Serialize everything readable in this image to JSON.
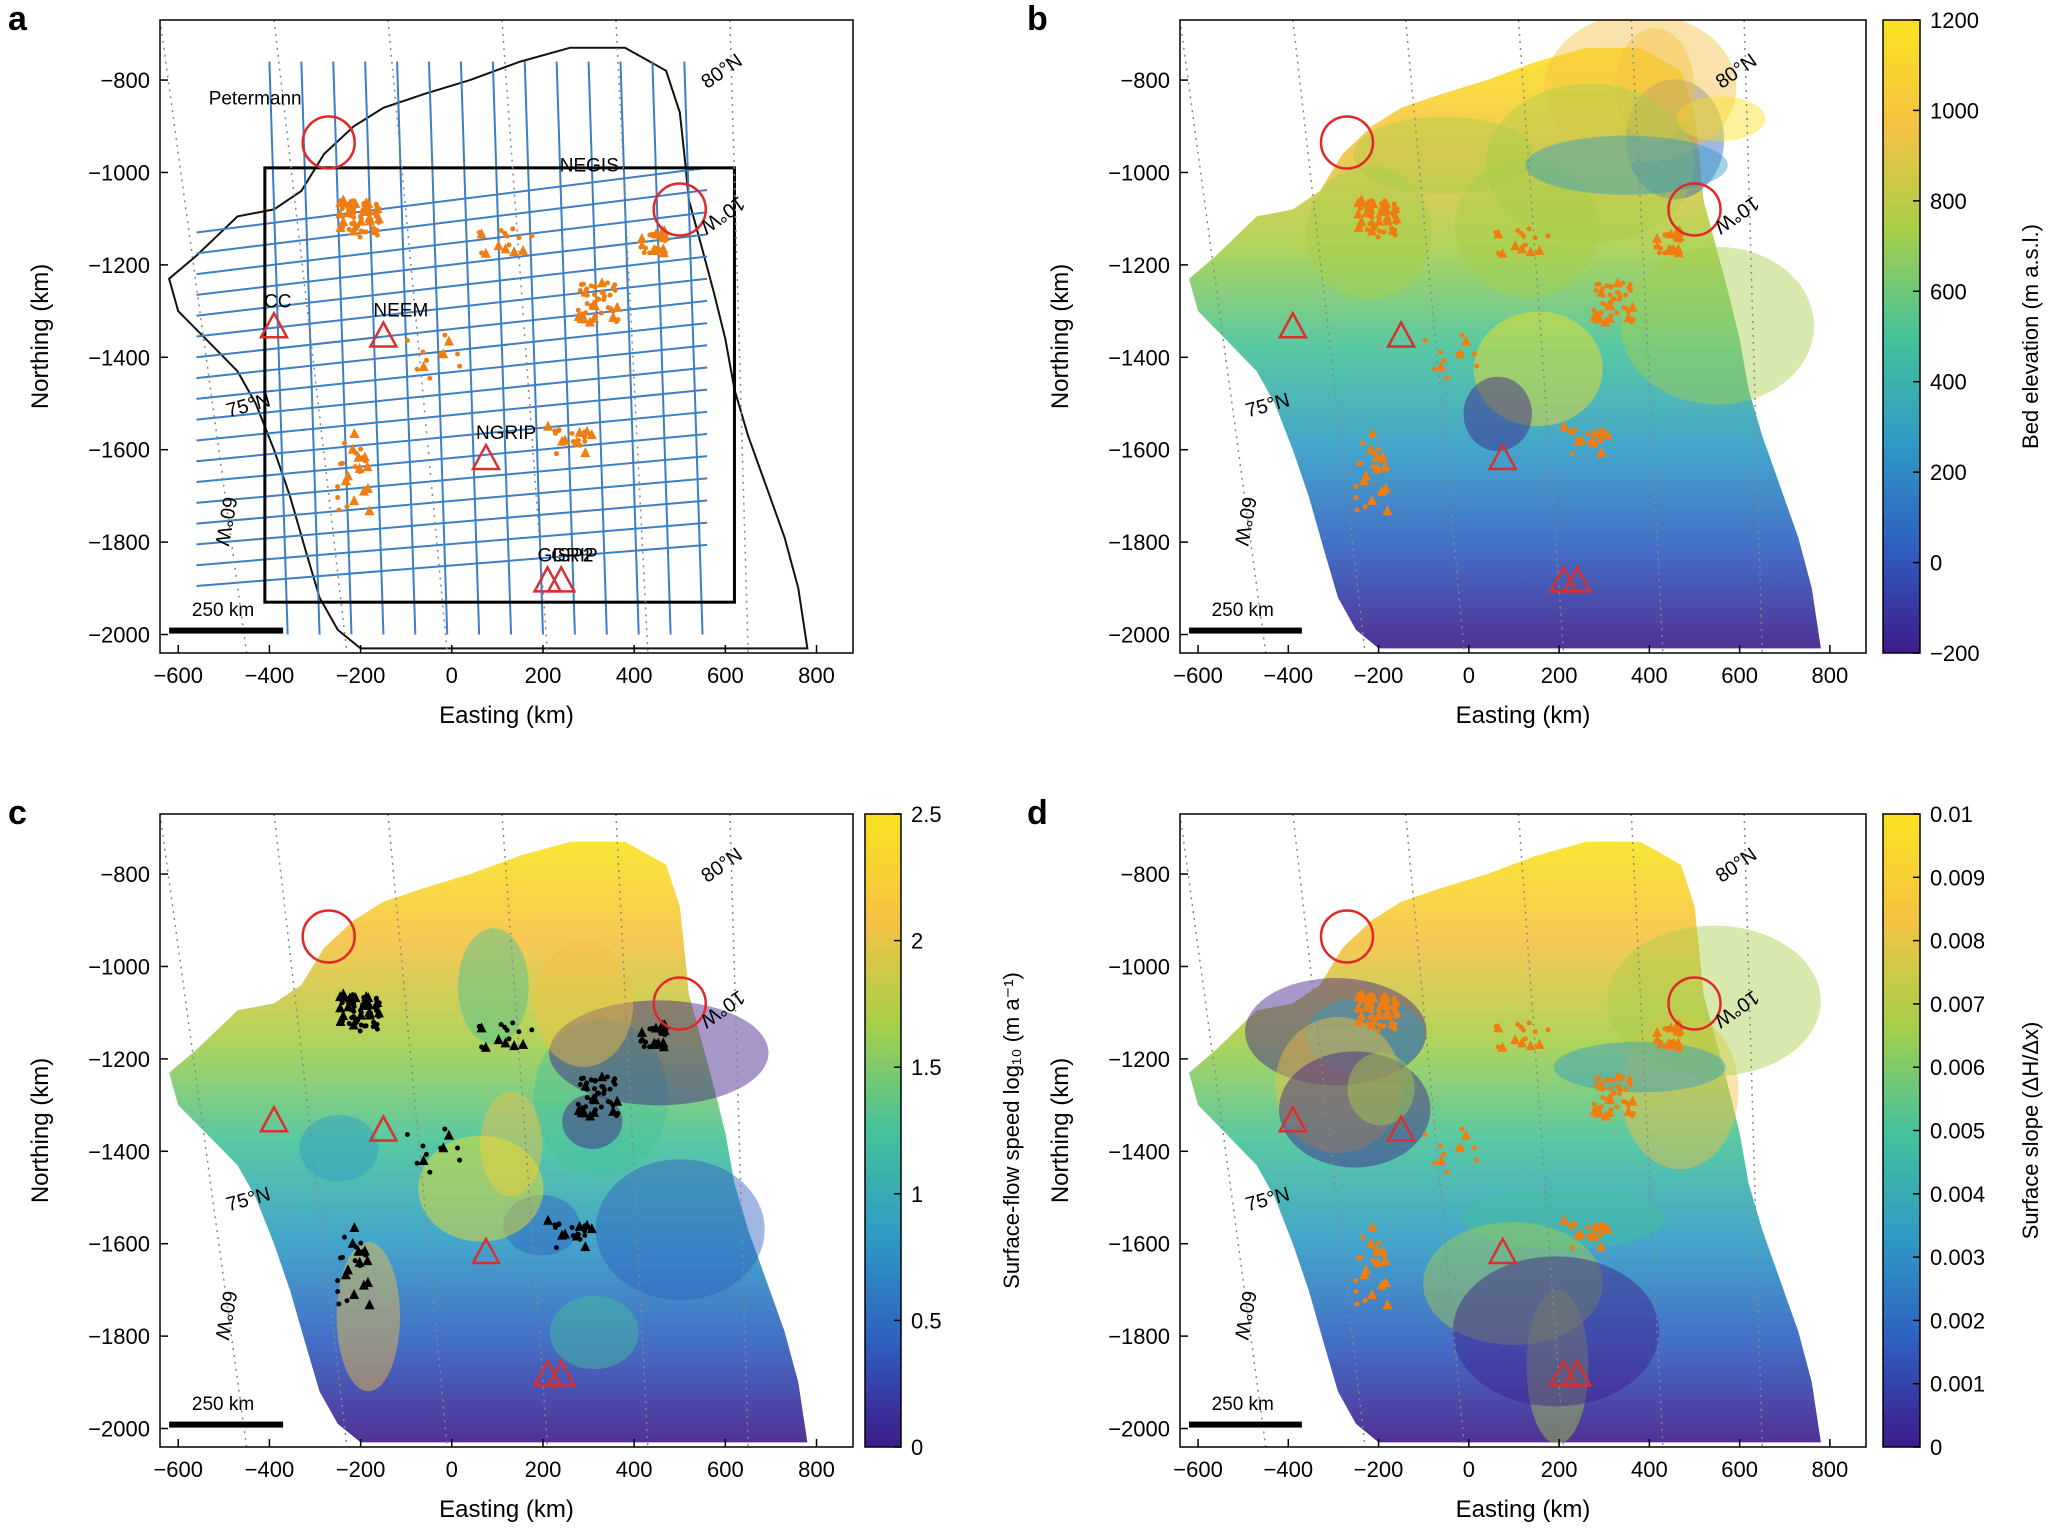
{
  "figure": {
    "scale_bar_label": "250 km",
    "lat_labels": [
      "80°N",
      "75°N"
    ],
    "lon_labels": [
      "10°W",
      "60°W"
    ],
    "x_axis_label": "Easting (km)",
    "y_axis_label": "Northing (km)"
  },
  "chart_data": [
    {
      "panel": "a",
      "type": "scatter",
      "title": "",
      "xlabel": "Easting (km)",
      "ylabel": "Northing (km)",
      "xlim": [
        -640,
        880
      ],
      "ylim": [
        -2040,
        -670
      ],
      "xticks": [
        -600,
        -400,
        -200,
        0,
        200,
        400,
        600,
        800
      ],
      "yticks": [
        -800,
        -1000,
        -1200,
        -1400,
        -1600,
        -1800,
        -2000
      ],
      "background": "radar flight lines over coastline outline",
      "series_colors": {
        "flight_lines": "#3d7fc4",
        "detections": "#f07d12",
        "sites": "#e03030",
        "box": "#000000"
      },
      "ice_core_sites": [
        {
          "name": "CC",
          "x": -390,
          "y": -1335
        },
        {
          "name": "NEEM",
          "x": -150,
          "y": -1355
        },
        {
          "name": "NGRIP",
          "x": 75,
          "y": -1620
        },
        {
          "name": "GISP2",
          "x": 210,
          "y": -1885
        },
        {
          "name": "GRIP",
          "x": 240,
          "y": -1885
        }
      ],
      "outlet_glaciers": [
        {
          "name": "Petermann",
          "x": -270,
          "y": -935
        },
        {
          "name": "NEGIS",
          "x": 500,
          "y": -1080
        }
      ],
      "study_box": {
        "x": [
          -410,
          620
        ],
        "y": [
          -1930,
          -990
        ]
      }
    },
    {
      "panel": "b",
      "type": "heatmap",
      "title": "",
      "xlabel": "Easting (km)",
      "ylabel": "Northing (km)",
      "xlim": [
        -640,
        880
      ],
      "ylim": [
        -2040,
        -670
      ],
      "colorbar": {
        "label": "Bed elevation (m a.s.l.)",
        "min": -200,
        "max": 1200,
        "ticks": [
          1200,
          1000,
          800,
          600,
          400,
          200,
          0,
          -200
        ]
      },
      "colormap": [
        "#3e1a8a",
        "#2f5fc0",
        "#2f9bc5",
        "#45c29a",
        "#a6cf4a",
        "#f5c242",
        "#f9e221"
      ]
    },
    {
      "panel": "c",
      "type": "heatmap",
      "title": "",
      "xlabel": "Easting (km)",
      "ylabel": "Northing (km)",
      "xlim": [
        -640,
        880
      ],
      "ylim": [
        -2040,
        -670
      ],
      "colorbar": {
        "label": "Surface-flow speed log₁₀ (m a⁻¹)",
        "min": 0,
        "max": 2.5,
        "ticks": [
          2.5,
          2,
          1.5,
          1,
          0.5,
          0
        ]
      },
      "colormap": [
        "#3e1a8a",
        "#2f5fc0",
        "#2f9bc5",
        "#45c29a",
        "#a6cf4a",
        "#f5c242",
        "#f9e221"
      ]
    },
    {
      "panel": "d",
      "type": "heatmap",
      "title": "",
      "xlabel": "Easting (km)",
      "ylabel": "Northing (km)",
      "xlim": [
        -640,
        880
      ],
      "ylim": [
        -2040,
        -670
      ],
      "colorbar": {
        "label": "Surface slope (ΔH/Δx)",
        "min": 0,
        "max": 0.01,
        "ticks": [
          0.01,
          0.009,
          0.008,
          0.007,
          0.006,
          0.005,
          0.004,
          0.003,
          0.002,
          0.001,
          0
        ]
      },
      "colormap": [
        "#3e1a8a",
        "#2f5fc0",
        "#2f9bc5",
        "#45c29a",
        "#a6cf4a",
        "#f5c242",
        "#f9e221"
      ]
    }
  ]
}
